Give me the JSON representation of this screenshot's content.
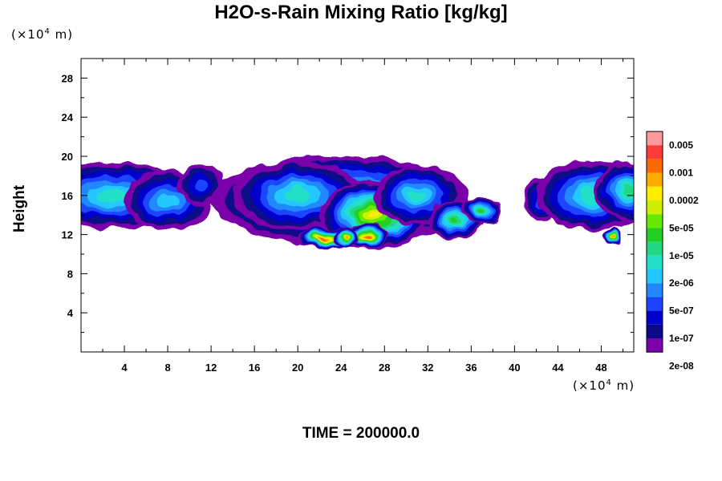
{
  "chart_data": {
    "type": "heatmap",
    "title": "H2O-s-Rain Mixing Ratio [kg/kg]",
    "ylabel": "Height",
    "y_unit": "(×10",
    "x_unit": "(×10",
    "unit_exponent": "4",
    "unit_suffix": " m)",
    "xlim": [
      0,
      51
    ],
    "ylim": [
      0,
      30
    ],
    "x_ticks": [
      "4",
      "8",
      "12",
      "16",
      "20",
      "24",
      "28",
      "32",
      "36",
      "40",
      "44",
      "48"
    ],
    "x_tick_values": [
      4,
      8,
      12,
      16,
      20,
      24,
      28,
      32,
      36,
      40,
      44,
      48
    ],
    "y_ticks": [
      "4",
      "8",
      "12",
      "16",
      "20",
      "24",
      "28"
    ],
    "y_tick_values": [
      4,
      8,
      12,
      16,
      20,
      24,
      28
    ],
    "colorbar": {
      "levels": [
        "0.005",
        "0.001",
        "0.0002",
        "5e-05",
        "1e-05",
        "2e-06",
        "5e-07",
        "1e-07",
        "2e-08"
      ],
      "level_colors": [
        "#ff9a9a",
        "#ff3a3a",
        "#ff6a00",
        "#ffaa00",
        "#ffee00",
        "#ccf000",
        "#66e800",
        "#22d022",
        "#22d882",
        "#22e0c8",
        "#22c8ff",
        "#2288ff",
        "#1a44ff",
        "#0000cc",
        "#0a0a88",
        "#7a00aa"
      ]
    },
    "regions": [
      {
        "x": [
          0,
          12
        ],
        "y": [
          12.8,
          19.5
        ],
        "peak_level": "1e-05"
      },
      {
        "x": [
          14,
          34
        ],
        "y": [
          10.5,
          19.8
        ],
        "peak_level": "0.001"
      },
      {
        "x": [
          33,
          37
        ],
        "y": [
          11.5,
          15.5
        ],
        "peak_level": "5e-05"
      },
      {
        "x": [
          41,
          51
        ],
        "y": [
          11,
          19.8
        ],
        "peak_level": "0.001"
      }
    ]
  },
  "footer": {
    "time_label": "TIME = 200000.0"
  }
}
